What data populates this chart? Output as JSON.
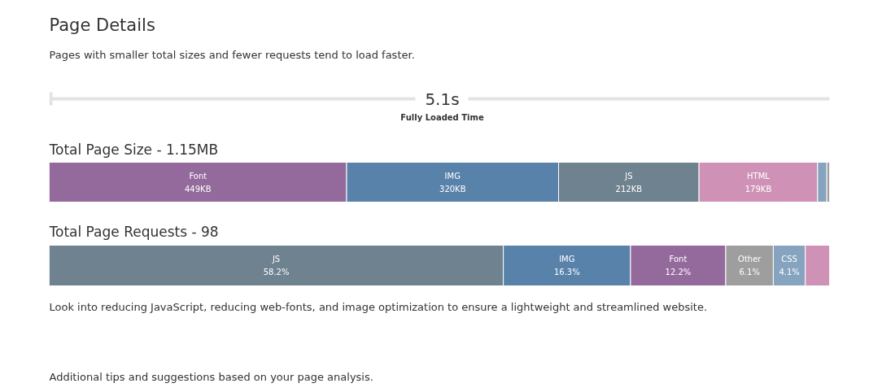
{
  "chart_data": [
    {
      "type": "bar",
      "orientation": "horizontal",
      "stacked": true,
      "title": "Total Page Size - 1.15MB",
      "categories": [
        null
      ],
      "xlim": [
        0,
        1178
      ],
      "tick_labels": false,
      "grid": false,
      "annotations": [
        "Page Details",
        "Pages with smaller total sizes and fewer requests tend to load faster.",
        "5.1s",
        "Fully Loaded Time"
      ],
      "series": [
        {
          "name": "Font",
          "color": "#936a9b",
          "values": [
            449
          ],
          "value_labels": [
            "449KB"
          ]
        },
        {
          "name": "IMG",
          "color": "#5882aa",
          "values": [
            320
          ],
          "value_labels": [
            "320KB"
          ]
        },
        {
          "name": "JS",
          "color": "#6e8290",
          "values": [
            212
          ],
          "value_labels": [
            "212KB"
          ]
        },
        {
          "name": "HTML",
          "color": "#cf92b6",
          "values": [
            179
          ],
          "value_labels": [
            "179KB"
          ]
        },
        {
          "color": "#86a4bf",
          "values": [
            14
          ]
        },
        {
          "color": "#9e9e9e",
          "values": [
            4
          ]
        }
      ]
    },
    {
      "type": "bar",
      "orientation": "horizontal",
      "stacked": true,
      "title": "Total Page Requests - 98",
      "categories": [
        null
      ],
      "xlim": [
        0,
        100
      ],
      "tick_labels": false,
      "grid": false,
      "annotations": [
        "Look into reducing JavaScript, reducing web-fonts, and image optimization to ensure a lightweight and streamlined website.",
        "Additional tips and suggestions based on your page analysis."
      ],
      "series": [
        {
          "name": "JS",
          "color": "#6e8290",
          "values": [
            58.2
          ],
          "value_labels": [
            "58.2%"
          ]
        },
        {
          "name": "IMG",
          "color": "#5882aa",
          "values": [
            16.3
          ],
          "value_labels": [
            "16.3%"
          ]
        },
        {
          "name": "Font",
          "color": "#936a9b",
          "values": [
            12.2
          ],
          "value_labels": [
            "12.2%"
          ]
        },
        {
          "name": "Other",
          "color": "#9e9e9e",
          "values": [
            6.1
          ],
          "value_labels": [
            "6.1%"
          ]
        },
        {
          "name": "CSS",
          "color": "#86a4bf",
          "values": [
            4.1
          ],
          "value_labels": [
            "4.1%"
          ]
        },
        {
          "color": "#cf92b6",
          "values": [
            3.1
          ]
        }
      ]
    }
  ]
}
